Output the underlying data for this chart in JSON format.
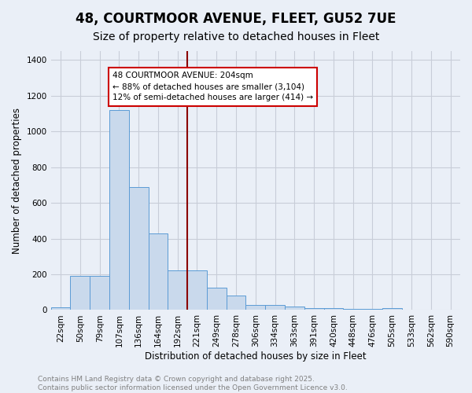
{
  "title_line1": "48, COURTMOOR AVENUE, FLEET, GU52 7UE",
  "title_line2": "Size of property relative to detached houses in Fleet",
  "xlabel": "Distribution of detached houses by size in Fleet",
  "ylabel": "Number of detached properties",
  "categories": [
    "22sqm",
    "50sqm",
    "79sqm",
    "107sqm",
    "136sqm",
    "164sqm",
    "192sqm",
    "221sqm",
    "249sqm",
    "278sqm",
    "306sqm",
    "334sqm",
    "363sqm",
    "391sqm",
    "420sqm",
    "448sqm",
    "476sqm",
    "505sqm",
    "533sqm",
    "562sqm",
    "590sqm"
  ],
  "values": [
    15,
    190,
    190,
    1120,
    690,
    430,
    220,
    220,
    125,
    80,
    28,
    28,
    20,
    12,
    10,
    5,
    5,
    12,
    0,
    0,
    0
  ],
  "bar_color": "#c9d9ec",
  "bar_edge_color": "#5b9bd5",
  "vline_x": 6.5,
  "vline_color": "#8b0000",
  "annotation_line1": "48 COURTMOOR AVENUE: 204sqm",
  "annotation_line2": "← 88% of detached houses are smaller (3,104)",
  "annotation_line3": "12% of semi-detached houses are larger (414) →",
  "annotation_box_facecolor": "#ffffff",
  "annotation_box_edgecolor": "#cc0000",
  "ylim": [
    0,
    1450
  ],
  "yticks": [
    0,
    200,
    400,
    600,
    800,
    1000,
    1200,
    1400
  ],
  "background_color": "#eaeff7",
  "grid_color": "#c8cdd8",
  "footer_line1": "Contains HM Land Registry data © Crown copyright and database right 2025.",
  "footer_line2": "Contains public sector information licensed under the Open Government Licence v3.0.",
  "title_fontsize": 12,
  "subtitle_fontsize": 10,
  "axis_label_fontsize": 8.5,
  "tick_fontsize": 7.5,
  "annotation_fontsize": 7.5,
  "footer_fontsize": 6.5,
  "bar_width": 1.0
}
